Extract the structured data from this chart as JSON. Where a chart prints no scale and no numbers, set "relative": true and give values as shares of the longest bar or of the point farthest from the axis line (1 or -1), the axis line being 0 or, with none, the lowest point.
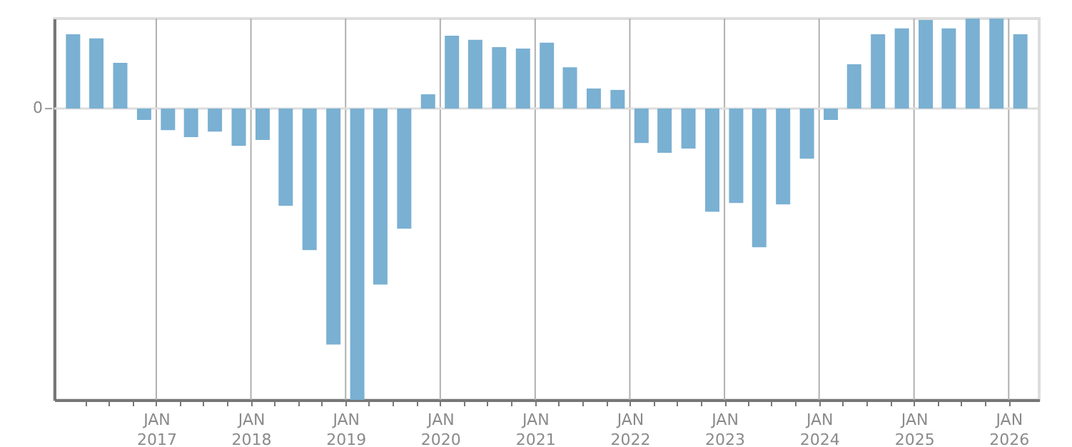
{
  "chart_data": {
    "type": "bar",
    "relative": true,
    "color": "#7ab0d2",
    "grid": "x",
    "x": [
      "2016-02-15",
      "2016-05-15",
      "2016-08-15",
      "2016-11-15",
      "2017-02-15",
      "2017-05-15",
      "2017-08-15",
      "2017-11-15",
      "2018-02-15",
      "2018-05-15",
      "2018-08-15",
      "2018-11-15",
      "2019-02-15",
      "2019-05-15",
      "2019-08-15",
      "2019-11-15",
      "2020-02-15",
      "2020-05-15",
      "2020-08-15",
      "2020-11-15",
      "2021-02-15",
      "2021-05-15",
      "2021-08-15",
      "2021-11-15",
      "2022-02-15",
      "2022-05-15",
      "2022-08-15",
      "2022-11-15",
      "2023-02-15",
      "2023-05-15",
      "2023-08-15",
      "2023-11-15",
      "2024-02-15",
      "2024-05-15",
      "2024-08-15",
      "2024-11-15",
      "2025-02-15",
      "2025-05-15",
      "2025-08-15",
      "2025-11-15",
      "2026-02-15"
    ],
    "values": [
      0.255,
      0.241,
      0.157,
      -0.039,
      -0.074,
      -0.098,
      -0.079,
      -0.128,
      -0.108,
      -0.334,
      -0.486,
      -0.81,
      -1,
      -0.604,
      -0.412,
      0.049,
      0.25,
      0.236,
      0.211,
      0.206,
      0.226,
      0.142,
      0.069,
      0.064,
      -0.118,
      -0.152,
      -0.137,
      -0.354,
      -0.324,
      -0.476,
      -0.329,
      -0.172,
      -0.039,
      0.152,
      0.255,
      0.275,
      0.304,
      0.275,
      0.309,
      0.309,
      0.255
    ],
    "annotations": [
      "0"
    ],
    "xlim": [
      "2016-01-01",
      "2026-04-01"
    ],
    "xticks": [
      {
        "value": "2016-04-01",
        "label": null
      },
      {
        "value": "2016-07-01",
        "label": null
      },
      {
        "value": "2016-10-01",
        "label": null
      },
      {
        "value": "2017-01-01",
        "label": "JAN\n2017"
      },
      {
        "value": "2017-04-01",
        "label": null
      },
      {
        "value": "2017-07-01",
        "label": null
      },
      {
        "value": "2017-10-01",
        "label": null
      },
      {
        "value": "2018-01-01",
        "label": "JAN\n2018"
      },
      {
        "value": "2018-04-01",
        "label": null
      },
      {
        "value": "2018-07-01",
        "label": null
      },
      {
        "value": "2018-10-01",
        "label": null
      },
      {
        "value": "2019-01-01",
        "label": "JAN\n2019"
      },
      {
        "value": "2019-04-01",
        "label": null
      },
      {
        "value": "2019-07-01",
        "label": null
      },
      {
        "value": "2019-10-01",
        "label": null
      },
      {
        "value": "2020-01-01",
        "label": "JAN\n2020"
      },
      {
        "value": "2020-04-01",
        "label": null
      },
      {
        "value": "2020-07-01",
        "label": null
      },
      {
        "value": "2020-10-01",
        "label": null
      },
      {
        "value": "2021-01-01",
        "label": "JAN\n2021"
      },
      {
        "value": "2021-04-01",
        "label": null
      },
      {
        "value": "2021-07-01",
        "label": null
      },
      {
        "value": "2021-10-01",
        "label": null
      },
      {
        "value": "2022-01-01",
        "label": "JAN\n2022"
      },
      {
        "value": "2022-04-01",
        "label": null
      },
      {
        "value": "2022-07-01",
        "label": null
      },
      {
        "value": "2022-10-01",
        "label": null
      },
      {
        "value": "2023-01-01",
        "label": "JAN\n2023"
      },
      {
        "value": "2023-04-01",
        "label": null
      },
      {
        "value": "2023-07-01",
        "label": null
      },
      {
        "value": "2023-10-01",
        "label": null
      },
      {
        "value": "2024-01-01",
        "label": "JAN\n2024"
      },
      {
        "value": "2024-04-01",
        "label": null
      },
      {
        "value": "2024-07-01",
        "label": null
      },
      {
        "value": "2024-10-01",
        "label": null
      },
      {
        "value": "2025-01-01",
        "label": "JAN\n2025"
      },
      {
        "value": "2025-04-01",
        "label": null
      },
      {
        "value": "2025-07-01",
        "label": null
      },
      {
        "value": "2025-10-01",
        "label": null
      },
      {
        "value": "2026-01-01",
        "label": "JAN\n2026"
      }
    ]
  }
}
